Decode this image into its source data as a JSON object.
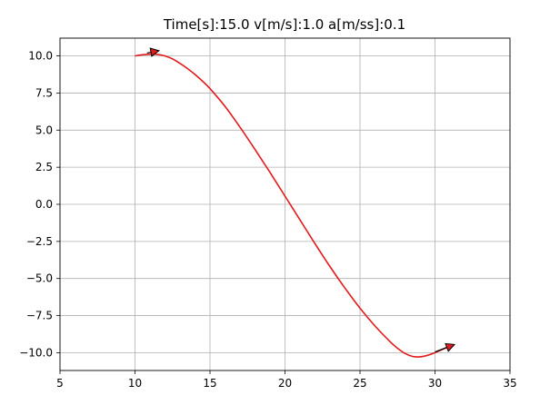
{
  "chart_data": {
    "type": "line",
    "title": "Time[s]:15.0 v[m/s]:1.0 a[m/ss]:0.1",
    "xlabel": "",
    "ylabel": "",
    "xlim": [
      5,
      35
    ],
    "ylim": [
      -11.2,
      11.2
    ],
    "xticks": [
      5,
      10,
      15,
      20,
      25,
      30,
      35
    ],
    "xtick_labels": [
      "5",
      "10",
      "15",
      "20",
      "25",
      "30",
      "35"
    ],
    "yticks": [
      10.0,
      7.5,
      5.0,
      2.5,
      0.0,
      -2.5,
      -5.0,
      -7.5,
      -10.0
    ],
    "ytick_labels": [
      "10.0",
      "7.5",
      "5.0",
      "2.5",
      "0.0",
      "−2.5",
      "−5.0",
      "−7.5",
      "−10.0"
    ],
    "grid": true,
    "series": [
      {
        "color": "#e41a1c",
        "x": [
          10.0,
          10.5,
          11.0,
          11.5,
          12.0,
          12.5,
          13.0,
          13.5,
          14.0,
          14.5,
          15.0,
          16.0,
          17.0,
          18.0,
          19.0,
          20.0,
          21.0,
          22.0,
          23.0,
          24.0,
          25.0,
          26.0,
          27.0,
          27.5,
          28.0,
          28.5,
          29.0,
          29.5,
          30.0,
          30.5,
          31.0
        ],
        "y": [
          10.0,
          10.08,
          10.12,
          10.1,
          10.0,
          9.8,
          9.5,
          9.15,
          8.75,
          8.3,
          7.8,
          6.6,
          5.2,
          3.7,
          2.15,
          0.55,
          -1.05,
          -2.65,
          -4.2,
          -5.65,
          -7.0,
          -8.2,
          -9.25,
          -9.7,
          -10.05,
          -10.25,
          -10.28,
          -10.18,
          -10.0,
          -9.78,
          -9.55
        ]
      }
    ],
    "annotations": [
      {
        "type": "arrow",
        "from": [
          10.8,
          10.2
        ],
        "to": [
          11.6,
          10.35
        ],
        "color": "#000000",
        "fill": "#e41a1c"
      },
      {
        "type": "arrow",
        "from": [
          30.0,
          -9.95
        ],
        "to": [
          31.3,
          -9.45
        ],
        "color": "#000000",
        "fill": "#e41a1c"
      }
    ]
  }
}
